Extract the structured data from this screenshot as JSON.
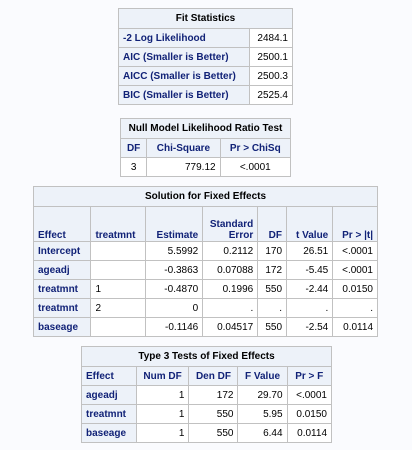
{
  "fit": {
    "title": "Fit Statistics",
    "rows": [
      {
        "label": "-2 Log Likelihood",
        "value": "2484.1"
      },
      {
        "label": "AIC (Smaller is Better)",
        "value": "2500.1"
      },
      {
        "label": "AICC (Smaller is Better)",
        "value": "2500.3"
      },
      {
        "label": "BIC (Smaller is Better)",
        "value": "2525.4"
      }
    ]
  },
  "null_model": {
    "title": "Null Model Likelihood Ratio Test",
    "headers": [
      "DF",
      "Chi-Square",
      "Pr > ChiSq"
    ],
    "row": [
      "3",
      "779.12",
      "<.0001"
    ]
  },
  "fixed": {
    "title": "Solution for Fixed Effects",
    "headers": [
      "Effect",
      "treatmnt",
      "Estimate",
      "Standard Error",
      "DF",
      "t Value",
      "Pr > |t|"
    ],
    "rows": [
      [
        "Intercept",
        "",
        "5.5992",
        "0.2112",
        "170",
        "26.51",
        "<.0001"
      ],
      [
        "ageadj",
        "",
        "-0.3863",
        "0.07088",
        "172",
        "-5.45",
        "<.0001"
      ],
      [
        "treatmnt",
        "1",
        "-0.4870",
        "0.1996",
        "550",
        "-2.44",
        "0.0150"
      ],
      [
        "treatmnt",
        "2",
        "0",
        ".",
        ".",
        ".",
        "."
      ],
      [
        "baseage",
        "",
        "-0.1146",
        "0.04517",
        "550",
        "-2.54",
        "0.0114"
      ]
    ]
  },
  "type3": {
    "title": "Type 3 Tests of Fixed Effects",
    "headers": [
      "Effect",
      "Num DF",
      "Den DF",
      "F Value",
      "Pr > F"
    ],
    "rows": [
      [
        "ageadj",
        "1",
        "172",
        "29.70",
        "<.0001"
      ],
      [
        "treatmnt",
        "1",
        "550",
        "5.95",
        "0.0150"
      ],
      [
        "baseage",
        "1",
        "550",
        "6.44",
        "0.0114"
      ]
    ]
  }
}
